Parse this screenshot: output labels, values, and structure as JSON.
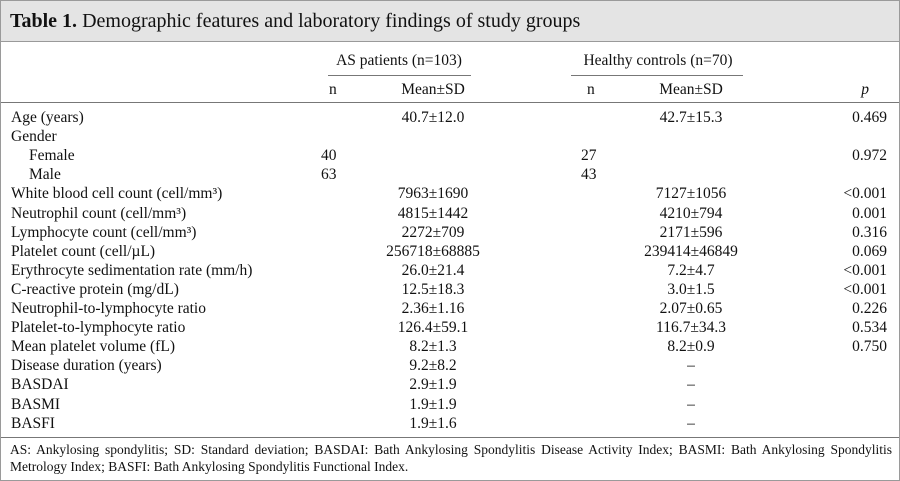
{
  "title": {
    "label": "Table 1.",
    "text": "Demographic features and laboratory findings of study groups"
  },
  "header": {
    "groups": [
      "AS patients (n=103)",
      "Healthy controls (n=70)"
    ],
    "columns": {
      "as_n": "n",
      "as_mean": "Mean±SD",
      "hc_n": "n",
      "hc_mean": "Mean±SD",
      "p": "p"
    }
  },
  "table": {
    "rows": [
      {
        "label": "Age (years)",
        "as_mean": "40.7±12.0",
        "hc_mean": "42.7±15.3",
        "p": "0.469"
      },
      {
        "label": "Gender",
        "items": [
          {
            "label": "Female",
            "as_n": "40",
            "hc_n": "27",
            "p": "0.972"
          },
          {
            "label": "Male",
            "as_n": "63",
            "hc_n": "43"
          }
        ]
      },
      {
        "label": "White blood cell count (cell/mm³)",
        "as_mean": "7963±1690",
        "hc_mean": "7127±1056",
        "p": "<0.001"
      },
      {
        "label": "Neutrophil count (cell/mm³)",
        "as_mean": "4815±1442",
        "hc_mean": "4210±794",
        "p": "0.001"
      },
      {
        "label": "Lymphocyte count (cell/mm³)",
        "as_mean": "2272±709",
        "hc_mean": "2171±596",
        "p": "0.316"
      },
      {
        "label": "Platelet count (cell/µL)",
        "as_mean": "256718±68885",
        "hc_mean": "239414±46849",
        "p": "0.069"
      },
      {
        "label": "Erythrocyte sedimentation rate (mm/h)",
        "as_mean": "26.0±21.4",
        "hc_mean": "7.2±4.7",
        "p": "<0.001"
      },
      {
        "label": "C-reactive protein (mg/dL)",
        "as_mean": "12.5±18.3",
        "hc_mean": "3.0±1.5",
        "p": "<0.001"
      },
      {
        "label": "Neutrophil-to-lymphocyte ratio",
        "as_mean": "2.36±1.16",
        "hc_mean": "2.07±0.65",
        "p": "0.226"
      },
      {
        "label": "Platelet-to-lymphocyte ratio",
        "as_mean": "126.4±59.1",
        "hc_mean": "116.7±34.3",
        "p": "0.534"
      },
      {
        "label": "Mean platelet volume (fL)",
        "as_mean": "8.2±1.3",
        "hc_mean": "8.2±0.9",
        "p": "0.750"
      },
      {
        "label": "Disease duration (years)",
        "as_mean": "9.2±8.2",
        "hc_mean": "–"
      },
      {
        "label": "BASDAI",
        "as_mean": "2.9±1.9",
        "hc_mean": "–"
      },
      {
        "label": "BASMI",
        "as_mean": "1.9±1.9",
        "hc_mean": "–"
      },
      {
        "label": "BASFI",
        "as_mean": "1.9±1.6",
        "hc_mean": "–"
      }
    ]
  },
  "note": "AS: Ankylosing spondylitis; SD: Standard deviation; BASDAI: Bath Ankylosing Spondylitis Disease Activity Index; BASMI: Bath Ankylosing Spondylitis Metrology Index; BASFI: Bath Ankylosing Spondylitis Functional Index."
}
